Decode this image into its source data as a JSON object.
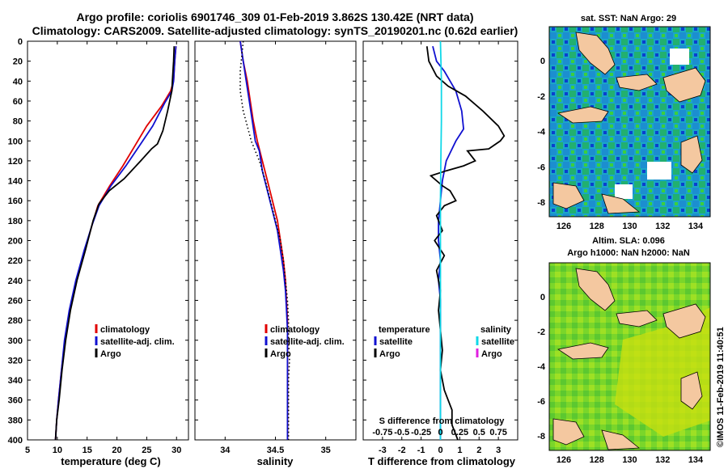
{
  "title_line1": "Argo profile: coriolis 6901746_309 01-Feb-2019 3.862S 130.42E (NRT data)",
  "title_line2": "Climatology: CARS2009. Satellite-adjusted climatology: synTS_20190201.nc (0.62d earlier)",
  "colors": {
    "climatology": "#e00000",
    "satellite": "#1010d0",
    "argo": "#000000",
    "sat_salinity": "#10d8e8",
    "argo_salinity_diff": "#e020e0"
  },
  "chart_data": [
    {
      "type": "line",
      "name": "temperature",
      "xlabel": "temperature (deg C)",
      "ylabel": "",
      "xlim": [
        5,
        32
      ],
      "ylim": [
        400,
        0
      ],
      "xticks": [
        "5",
        "10",
        "15",
        "20",
        "25",
        "30"
      ],
      "xtick_values": [
        5,
        10,
        15,
        20,
        25,
        30
      ],
      "yticks": [
        "0",
        "20",
        "40",
        "60",
        "80",
        "100",
        "120",
        "140",
        "160",
        "180",
        "200",
        "220",
        "240",
        "260",
        "280",
        "300",
        "320",
        "340",
        "360",
        "380",
        "400"
      ],
      "legend": [
        "climatology",
        "satellite-adj. clim.",
        "Argo"
      ],
      "series": [
        {
          "name": "climatology",
          "color": "#e00000",
          "points": [
            [
              29.9,
              5
            ],
            [
              29.7,
              20
            ],
            [
              29.5,
              40
            ],
            [
              29,
              50
            ],
            [
              27.5,
              65
            ],
            [
              25,
              85
            ],
            [
              23,
              105
            ],
            [
              21,
              125
            ],
            [
              18.8,
              145
            ],
            [
              16.8,
              165
            ],
            [
              15.8,
              185
            ],
            [
              14.6,
              210
            ],
            [
              13.2,
              240
            ],
            [
              12.1,
              270
            ],
            [
              11.3,
              300
            ],
            [
              10.7,
              330
            ],
            [
              10.2,
              360
            ],
            [
              9.9,
              380
            ],
            [
              9.7,
              400
            ]
          ]
        },
        {
          "name": "satellite-adj. clim.",
          "color": "#1010d0",
          "points": [
            [
              29.9,
              5
            ],
            [
              29.7,
              20
            ],
            [
              29.5,
              40
            ],
            [
              29.2,
              50
            ],
            [
              28,
              62
            ],
            [
              26,
              85
            ],
            [
              24,
              103
            ],
            [
              21.5,
              125
            ],
            [
              19,
              145
            ],
            [
              17,
              165
            ],
            [
              15.8,
              185
            ],
            [
              14.5,
              210
            ],
            [
              13.1,
              240
            ],
            [
              12,
              270
            ],
            [
              11.2,
              300
            ],
            [
              10.7,
              330
            ],
            [
              10.2,
              360
            ],
            [
              9.9,
              380
            ],
            [
              9.7,
              400
            ]
          ]
        },
        {
          "name": "Argo",
          "color": "#000000",
          "points": [
            [
              29.6,
              5
            ],
            [
              29.5,
              20
            ],
            [
              29.3,
              40
            ],
            [
              29.2,
              50
            ],
            [
              28.5,
              70
            ],
            [
              27.7,
              90
            ],
            [
              26.8,
              103
            ],
            [
              25.8,
              108
            ],
            [
              24,
              120
            ],
            [
              21.2,
              138
            ],
            [
              18.7,
              150
            ],
            [
              17,
              163
            ],
            [
              16,
              180
            ],
            [
              14.7,
              210
            ],
            [
              13.3,
              240
            ],
            [
              12.2,
              270
            ],
            [
              11.4,
              300
            ],
            [
              10.8,
              330
            ],
            [
              10.3,
              360
            ],
            [
              9.9,
              380
            ],
            [
              9.7,
              400
            ]
          ]
        }
      ]
    },
    {
      "type": "line",
      "name": "salinity",
      "xlabel": "salinity",
      "xlim": [
        33.7,
        35.3
      ],
      "ylim": [
        400,
        0
      ],
      "xticks": [
        "34",
        "34.5",
        "35"
      ],
      "xtick_values": [
        34,
        34.5,
        35
      ],
      "legend": [
        "climatology",
        "satellite-adj. clim.",
        "Argo"
      ],
      "series": [
        {
          "name": "climatology",
          "color": "#e00000",
          "points": [
            [
              34.15,
              0
            ],
            [
              34.18,
              20
            ],
            [
              34.22,
              40
            ],
            [
              34.25,
              60
            ],
            [
              34.28,
              80
            ],
            [
              34.32,
              100
            ],
            [
              34.37,
              120
            ],
            [
              34.42,
              140
            ],
            [
              34.47,
              160
            ],
            [
              34.52,
              180
            ],
            [
              34.55,
              200
            ],
            [
              34.58,
              220
            ],
            [
              34.6,
              240
            ],
            [
              34.61,
              260
            ],
            [
              34.62,
              280
            ],
            [
              34.62,
              300
            ],
            [
              34.62,
              320
            ],
            [
              34.62,
              340
            ],
            [
              34.62,
              360
            ],
            [
              34.62,
              380
            ],
            [
              34.62,
              400
            ]
          ]
        },
        {
          "name": "satellite-adj. clim.",
          "color": "#1010d0",
          "points": [
            [
              34.15,
              0
            ],
            [
              34.18,
              20
            ],
            [
              34.21,
              40
            ],
            [
              34.24,
              60
            ],
            [
              34.27,
              80
            ],
            [
              34.3,
              100
            ],
            [
              34.34,
              110
            ],
            [
              34.37,
              130
            ],
            [
              34.42,
              150
            ],
            [
              34.47,
              170
            ],
            [
              34.52,
              190
            ],
            [
              34.55,
              210
            ],
            [
              34.58,
              230
            ],
            [
              34.6,
              250
            ],
            [
              34.61,
              270
            ],
            [
              34.62,
              290
            ],
            [
              34.62,
              320
            ],
            [
              34.62,
              350
            ],
            [
              34.62,
              380
            ],
            [
              34.62,
              400
            ]
          ]
        },
        {
          "name": "Argo",
          "color": "#000000",
          "points": [
            [
              34.18,
              0
            ],
            [
              34.17,
              10
            ],
            [
              34.15,
              30
            ],
            [
              34.15,
              50
            ],
            [
              34.18,
              70
            ],
            [
              34.22,
              85
            ],
            [
              34.26,
              100
            ],
            [
              34.34,
              120
            ],
            [
              34.4,
              140
            ],
            [
              34.45,
              160
            ],
            [
              34.5,
              180
            ],
            [
              34.55,
              200
            ],
            [
              34.58,
              220
            ],
            [
              34.6,
              240
            ],
            [
              34.62,
              260
            ],
            [
              34.63,
              280
            ],
            [
              34.63,
              300
            ],
            [
              34.64,
              320
            ],
            [
              34.63,
              340
            ],
            [
              34.63,
              360
            ],
            [
              34.63,
              380
            ],
            [
              34.63,
              400
            ]
          ]
        }
      ]
    },
    {
      "type": "line",
      "name": "differences",
      "xlabel": "T difference from climatology",
      "xlabel2": "S difference from climatology",
      "xlim": [
        -4,
        4
      ],
      "ylim": [
        400,
        0
      ],
      "xticks": [
        "-3",
        "-2",
        "-1",
        "0",
        "1",
        "2",
        "3"
      ],
      "xtick_values": [
        -3,
        -2,
        -1,
        0,
        1,
        2,
        3
      ],
      "s_xticks": [
        "-0.75",
        "-0.5",
        "-0.25",
        "0",
        "0.25",
        "0.5",
        "0.75"
      ],
      "legend_left_title": "temperature",
      "legend_right_title": "salinity",
      "legend": [
        "satellite",
        "Argo"
      ],
      "series": [
        {
          "name": "temperature satellite",
          "color": "#1010d0",
          "points": [
            [
              -0.4,
              5
            ],
            [
              -0.2,
              20
            ],
            [
              0.2,
              30
            ],
            [
              0.8,
              50
            ],
            [
              1.1,
              70
            ],
            [
              1.2,
              88
            ],
            [
              0.8,
              100
            ],
            [
              0.3,
              120
            ],
            [
              0.1,
              140
            ],
            [
              0,
              160
            ],
            [
              -0.1,
              180
            ],
            [
              -0.1,
              200
            ],
            [
              0,
              220
            ],
            [
              -0.1,
              240
            ],
            [
              0,
              260
            ],
            [
              0,
              280
            ],
            [
              0,
              300
            ],
            [
              0,
              330
            ],
            [
              0,
              360
            ],
            [
              0,
              400
            ]
          ]
        },
        {
          "name": "temperature Argo",
          "color": "#000000",
          "points": [
            [
              -0.7,
              5
            ],
            [
              -0.6,
              20
            ],
            [
              -0.2,
              35
            ],
            [
              0.4,
              45
            ],
            [
              1.3,
              55
            ],
            [
              2.2,
              70
            ],
            [
              3,
              85
            ],
            [
              3.3,
              95
            ],
            [
              3.1,
              100
            ],
            [
              2.5,
              108
            ],
            [
              1.4,
              110
            ],
            [
              1.8,
              120
            ],
            [
              1.2,
              125
            ],
            [
              0.3,
              130
            ],
            [
              -0.5,
              135
            ],
            [
              0.1,
              145
            ],
            [
              0.5,
              150
            ],
            [
              0.8,
              160
            ],
            [
              0.2,
              165
            ],
            [
              -0.2,
              175
            ],
            [
              0.1,
              190
            ],
            [
              -0.3,
              200
            ],
            [
              0.2,
              215
            ],
            [
              -0.2,
              230
            ],
            [
              0,
              250
            ],
            [
              -0.1,
              270
            ],
            [
              0,
              290
            ],
            [
              0.1,
              310
            ],
            [
              0,
              330
            ],
            [
              0.2,
              350
            ],
            [
              0.4,
              360
            ],
            [
              0.6,
              370
            ],
            [
              0.6,
              385
            ],
            [
              0.8,
              395
            ],
            [
              0.9,
              400
            ]
          ]
        },
        {
          "name": "salinity satellite",
          "color": "#10d8e8",
          "points": [
            [
              0,
              0
            ],
            [
              0.05,
              40
            ],
            [
              0.05,
              80
            ],
            [
              0.02,
              120
            ],
            [
              0,
              160
            ],
            [
              0,
              200
            ],
            [
              0,
              240
            ],
            [
              0,
              280
            ],
            [
              0,
              320
            ],
            [
              0,
              360
            ],
            [
              0,
              400
            ]
          ]
        }
      ]
    }
  ],
  "maps": {
    "sst": {
      "title": "sat. SST: NaN Argo: 29",
      "xticks": [
        "126",
        "128",
        "130",
        "132",
        "134"
      ],
      "yticks": [
        "0",
        "-2",
        "-4",
        "-6",
        "-8"
      ]
    },
    "sla": {
      "title_line1": "Altim. SLA: 0.096",
      "title_line2": "Argo h1000: NaN h2000: NaN",
      "xticks": [
        "126",
        "128",
        "130",
        "132",
        "134"
      ],
      "yticks": [
        "0",
        "-2",
        "-4",
        "-6",
        "-8"
      ]
    }
  },
  "footer_stamp": "©IMOS 11-Feb-2019 11:40:51"
}
